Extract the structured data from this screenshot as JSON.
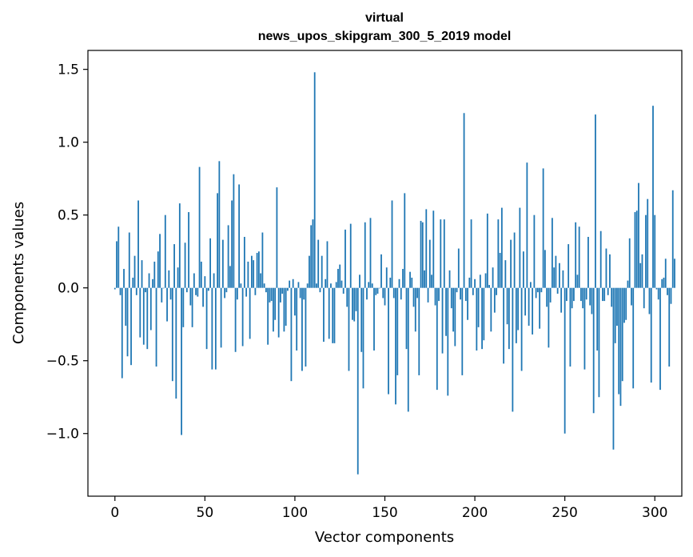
{
  "chart_data": {
    "type": "bar",
    "title_lines": [
      "virtual",
      "news_upos_skipgram_300_5_2019 model"
    ],
    "xlabel": "Vector components",
    "ylabel": "Components values",
    "xlim": [
      -15,
      315
    ],
    "ylim": [
      -1.43,
      1.63
    ],
    "xticks": [
      0,
      50,
      100,
      150,
      200,
      250,
      300
    ],
    "xtick_labels": [
      "0",
      "50",
      "100",
      "150",
      "200",
      "250",
      "300"
    ],
    "yticks": [
      -1.0,
      -0.5,
      0.0,
      0.5,
      1.0,
      1.5
    ],
    "ytick_labels": [
      "−1.0",
      "−0.5",
      "0.0",
      "0.5",
      "1.0",
      "1.5"
    ],
    "bar_color": "#1f77b4",
    "grid": false,
    "values": [
      -0.01,
      0.32,
      0.42,
      -0.05,
      -0.62,
      0.13,
      -0.26,
      -0.47,
      0.38,
      -0.53,
      0.07,
      0.22,
      -0.05,
      0.6,
      -0.34,
      0.19,
      -0.39,
      -0.03,
      -0.42,
      0.1,
      -0.29,
      0.06,
      0.18,
      -0.54,
      0.25,
      0.37,
      -0.1,
      0.0,
      0.5,
      -0.23,
      0.12,
      -0.08,
      -0.64,
      0.3,
      -0.76,
      0.14,
      0.58,
      -1.01,
      -0.27,
      0.31,
      -0.03,
      0.52,
      -0.12,
      -0.27,
      0.1,
      -0.05,
      -0.06,
      0.83,
      0.18,
      -0.13,
      0.08,
      -0.42,
      -0.02,
      0.34,
      -0.56,
      0.1,
      -0.56,
      0.65,
      0.87,
      -0.41,
      0.33,
      -0.07,
      -0.03,
      0.43,
      0.15,
      0.6,
      0.78,
      -0.44,
      -0.08,
      0.71,
      0.03,
      -0.4,
      0.35,
      -0.06,
      0.18,
      -0.35,
      0.22,
      0.19,
      -0.05,
      0.24,
      0.25,
      0.1,
      0.38,
      0.03,
      -0.03,
      -0.39,
      -0.1,
      -0.09,
      -0.3,
      -0.22,
      0.69,
      -0.34,
      -0.1,
      -0.04,
      -0.3,
      -0.26,
      -0.02,
      0.05,
      -0.64,
      0.06,
      -0.19,
      -0.43,
      0.04,
      -0.07,
      -0.57,
      -0.08,
      -0.54,
      0.03,
      0.22,
      0.43,
      0.47,
      1.48,
      0.03,
      0.33,
      -0.03,
      0.22,
      -0.37,
      0.06,
      0.32,
      -0.35,
      0.03,
      -0.38,
      -0.38,
      0.04,
      0.13,
      0.16,
      0.05,
      -0.04,
      0.4,
      -0.13,
      -0.57,
      0.44,
      -0.22,
      -0.23,
      -0.16,
      -1.28,
      0.09,
      -0.44,
      -0.69,
      0.45,
      -0.08,
      0.04,
      0.48,
      0.03,
      -0.43,
      -0.05,
      -0.04,
      0.0,
      0.23,
      -0.07,
      -0.12,
      0.14,
      -0.73,
      0.07,
      0.6,
      -0.07,
      -0.8,
      -0.6,
      0.06,
      -0.08,
      0.13,
      0.65,
      -0.42,
      -0.85,
      0.11,
      0.07,
      -0.13,
      -0.3,
      -0.07,
      -0.6,
      0.46,
      0.45,
      0.12,
      0.54,
      -0.1,
      0.33,
      0.09,
      0.53,
      -0.12,
      -0.7,
      -0.09,
      0.47,
      -0.45,
      0.47,
      -0.33,
      -0.74,
      0.12,
      -0.14,
      -0.3,
      -0.4,
      -0.03,
      0.27,
      -0.08,
      -0.6,
      1.2,
      -0.09,
      -0.22,
      0.07,
      0.47,
      -0.05,
      0.06,
      -0.43,
      -0.27,
      0.09,
      -0.42,
      -0.36,
      0.1,
      0.51,
      0.02,
      -0.3,
      0.14,
      -0.17,
      -0.05,
      0.47,
      0.24,
      0.55,
      -0.52,
      0.19,
      -0.25,
      -0.42,
      0.33,
      -0.85,
      0.38,
      -0.38,
      -0.29,
      0.55,
      -0.57,
      0.25,
      -0.19,
      0.86,
      -0.26,
      0.04,
      -0.32,
      0.5,
      -0.07,
      -0.03,
      -0.28,
      -0.03,
      0.82,
      0.26,
      -0.13,
      -0.41,
      -0.1,
      0.48,
      0.14,
      0.22,
      -0.04,
      0.17,
      -0.17,
      0.12,
      -1.0,
      -0.09,
      0.3,
      -0.54,
      -0.14,
      -0.09,
      0.45,
      0.09,
      0.42,
      -0.09,
      -0.14,
      -0.56,
      -0.08,
      0.35,
      -0.12,
      -0.18,
      -0.86,
      1.19,
      -0.43,
      -0.75,
      0.39,
      -0.09,
      -0.09,
      0.27,
      -0.05,
      0.23,
      -0.13,
      -1.11,
      -0.38,
      -0.26,
      -0.73,
      -0.81,
      -0.64,
      -0.24,
      -0.22,
      0.05,
      0.34,
      -0.12,
      -0.69,
      0.52,
      0.53,
      0.72,
      0.17,
      0.23,
      -0.14,
      0.5,
      0.61,
      -0.18,
      -0.65,
      1.25,
      0.5,
      -0.01,
      -0.08,
      -0.7,
      0.06,
      0.07,
      0.2,
      -0.05,
      -0.54,
      -0.11,
      0.67,
      0.2
    ]
  }
}
